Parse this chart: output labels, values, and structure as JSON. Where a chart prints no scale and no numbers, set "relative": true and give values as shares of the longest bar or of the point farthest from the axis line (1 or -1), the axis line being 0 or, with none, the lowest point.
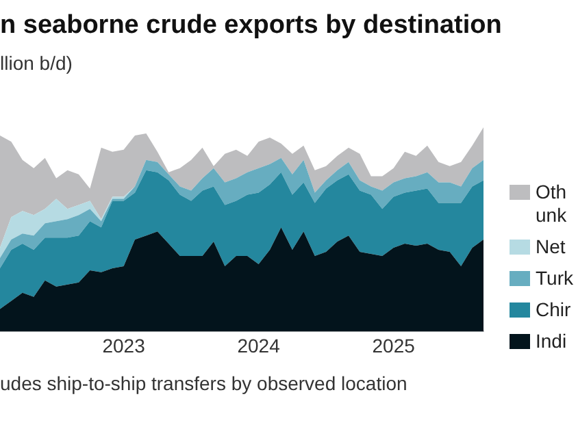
{
  "chart_data": {
    "type": "area",
    "title": "n seaborne crude exports by destination",
    "subtitle": "llion b/d)",
    "annotations": [
      "udes ship-to-ship transfers by observed location"
    ],
    "relative": true,
    "stacked": true,
    "legend": "right",
    "marker": "none",
    "x": [
      "2022-02",
      "2022-03",
      "2022-04",
      "2022-05",
      "2022-06",
      "2022-07",
      "2022-08",
      "2022-09",
      "2022-10",
      "2022-11",
      "2022-12",
      "2023-01",
      "2023-02",
      "2023-03",
      "2023-04",
      "2023-05",
      "2023-06",
      "2023-07",
      "2023-08",
      "2023-09",
      "2023-10",
      "2023-11",
      "2023-12",
      "2024-01",
      "2024-02",
      "2024-03",
      "2024-04",
      "2024-05",
      "2024-06",
      "2024-07",
      "2024-08",
      "2024-09",
      "2024-10",
      "2024-11",
      "2024-12",
      "2025-01",
      "2025-02",
      "2025-03",
      "2025-04",
      "2025-05",
      "2025-06",
      "2025-07",
      "2025-08",
      "2025-09"
    ],
    "xlim": [
      "2022-02",
      "2025-09"
    ],
    "xticks": [
      "2023",
      "2024",
      "2025"
    ],
    "series": [
      {
        "name": "Indi",
        "color": "#03141c",
        "values": [
          0.11,
          0.15,
          0.19,
          0.17,
          0.25,
          0.22,
          0.23,
          0.24,
          0.3,
          0.29,
          0.31,
          0.32,
          0.45,
          0.47,
          0.49,
          0.43,
          0.37,
          0.37,
          0.37,
          0.44,
          0.32,
          0.37,
          0.37,
          0.33,
          0.4,
          0.51,
          0.4,
          0.49,
          0.37,
          0.39,
          0.44,
          0.47,
          0.39,
          0.38,
          0.37,
          0.41,
          0.43,
          0.42,
          0.43,
          0.4,
          0.39,
          0.32,
          0.41,
          0.45
        ]
      },
      {
        "name": "Chir",
        "color": "#24879e",
        "values": [
          0.2,
          0.25,
          0.24,
          0.23,
          0.21,
          0.24,
          0.23,
          0.23,
          0.24,
          0.22,
          0.33,
          0.32,
          0.23,
          0.32,
          0.29,
          0.31,
          0.3,
          0.27,
          0.32,
          0.27,
          0.3,
          0.27,
          0.3,
          0.35,
          0.32,
          0.27,
          0.27,
          0.24,
          0.26,
          0.31,
          0.3,
          0.3,
          0.3,
          0.29,
          0.23,
          0.25,
          0.25,
          0.27,
          0.27,
          0.23,
          0.24,
          0.31,
          0.3,
          0.29
        ]
      },
      {
        "name": "Turk",
        "color": "#67adc0",
        "values": [
          0.05,
          0.05,
          0.05,
          0.07,
          0.07,
          0.08,
          0.09,
          0.1,
          0.06,
          0.03,
          0.01,
          0.01,
          0.03,
          0.05,
          0.05,
          0.03,
          0.04,
          0.05,
          0.06,
          0.09,
          0.11,
          0.11,
          0.11,
          0.12,
          0.1,
          0.07,
          0.1,
          0.11,
          0.05,
          0.04,
          0.05,
          0.06,
          0.05,
          0.04,
          0.09,
          0.07,
          0.07,
          0.07,
          0.08,
          0.1,
          0.1,
          0.08,
          0.09,
          0.1
        ]
      },
      {
        "name": "Net",
        "color": "#b6dbe3",
        "values": [
          0.05,
          0.11,
          0.11,
          0.1,
          0.07,
          0.11,
          0.05,
          0.05,
          0.04,
          0.01,
          0.01,
          0.01,
          0,
          0,
          0,
          0,
          0,
          0,
          0,
          0,
          0,
          0,
          0,
          0,
          0,
          0,
          0,
          0,
          0,
          0,
          0,
          0,
          0,
          0,
          0,
          0,
          0,
          0,
          0,
          0,
          0,
          0,
          0,
          0
        ]
      },
      {
        "name": "Oth\nunk",
        "color": "#bdbdbf",
        "values": [
          0.55,
          0.37,
          0.25,
          0.23,
          0.25,
          0.1,
          0.19,
          0.15,
          0.06,
          0.35,
          0.22,
          0.23,
          0.25,
          0.13,
          0.05,
          0.01,
          0.09,
          0.15,
          0.15,
          0.01,
          0.14,
          0.14,
          0.08,
          0.13,
          0.13,
          0.07,
          0.1,
          0.07,
          0.11,
          0.07,
          0.07,
          0.07,
          0.13,
          0.05,
          0.07,
          0.07,
          0.13,
          0.1,
          0.13,
          0.1,
          0.08,
          0.12,
          0.11,
          0.16
        ]
      }
    ]
  }
}
